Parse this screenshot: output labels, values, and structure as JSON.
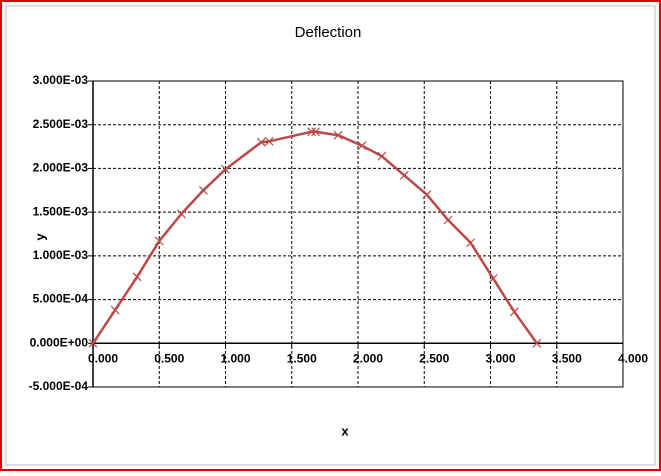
{
  "chart_data": {
    "type": "line",
    "title": "Deflection",
    "x_label": "x",
    "y_label": "y",
    "x": [
      0,
      0.167,
      0.333,
      0.5,
      0.667,
      0.833,
      1.0,
      1.27,
      1.33,
      1.65,
      1.68,
      1.85,
      2.03,
      2.18,
      2.35,
      2.52,
      2.68,
      2.85,
      3.02,
      3.18,
      3.35
    ],
    "series": [
      {
        "name": "Deflection",
        "color": "#b94a48",
        "values": [
          0,
          0.00038,
          0.00076,
          0.00117,
          0.00148,
          0.00175,
          0.00199,
          0.0023,
          0.00231,
          0.00242,
          0.00242,
          0.00238,
          0.00226,
          0.00214,
          0.00192,
          0.0017,
          0.00141,
          0.00115,
          0.00074,
          0.00036,
          0
        ]
      }
    ],
    "marker": "x",
    "grid": true,
    "xlim": [
      0,
      4
    ],
    "xticks": [
      {
        "value": 0,
        "label": "0.000"
      },
      {
        "value": 0.5,
        "label": "0.500"
      },
      {
        "value": 1,
        "label": "1.000"
      },
      {
        "value": 1.5,
        "label": "1.500"
      },
      {
        "value": 2,
        "label": "2.000"
      },
      {
        "value": 2.5,
        "label": "2.500"
      },
      {
        "value": 3,
        "label": "3.000"
      },
      {
        "value": 3.5,
        "label": "3.500"
      },
      {
        "value": 4,
        "label": "4.000"
      }
    ],
    "ylim": [
      -0.0005,
      0.003
    ],
    "yticks": [
      {
        "value": -0.0005,
        "label": "-5.000E-04"
      },
      {
        "value": 0,
        "label": "0.000E+00"
      },
      {
        "value": 0.0005,
        "label": "5.000E-04"
      },
      {
        "value": 0.001,
        "label": "1.000E-03"
      },
      {
        "value": 0.0015,
        "label": "1.500E-03"
      },
      {
        "value": 0.002,
        "label": "2.000E-03"
      },
      {
        "value": 0.0025,
        "label": "2.500E-03"
      },
      {
        "value": 0.003,
        "label": "3.000E-03"
      }
    ]
  }
}
